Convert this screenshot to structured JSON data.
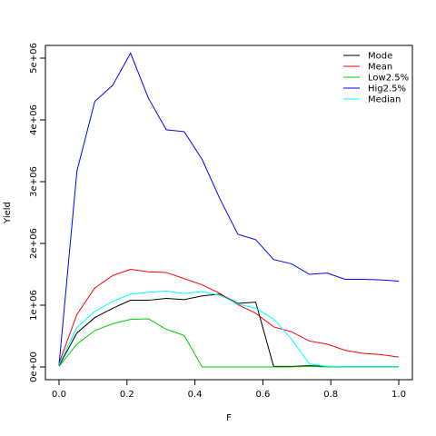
{
  "chart_data": {
    "type": "line",
    "title": "",
    "xlabel": "F",
    "ylabel": "Yield",
    "xlim": [
      0,
      1
    ],
    "ylim": [
      0,
      5000000
    ],
    "x_ticks": [
      0.0,
      0.2,
      0.4,
      0.6,
      0.8,
      1.0
    ],
    "x_tick_labels": [
      "0.0",
      "0.2",
      "0.4",
      "0.6",
      "0.8",
      "1.0"
    ],
    "y_ticks": [
      0,
      1000000,
      2000000,
      3000000,
      4000000,
      5000000
    ],
    "y_tick_labels": [
      "0e+00",
      "1e+06",
      "2e+06",
      "3e+06",
      "4e+06",
      "5e+06"
    ],
    "grid": false,
    "legend_position": "top-right",
    "x": [
      0.0,
      0.0526,
      0.1053,
      0.1579,
      0.2105,
      0.2632,
      0.3158,
      0.3684,
      0.4211,
      0.4737,
      0.5263,
      0.5789,
      0.6316,
      0.6842,
      0.7368,
      0.7895,
      0.8421,
      0.8947,
      0.9474,
      1.0
    ],
    "series": [
      {
        "name": "Mode",
        "color": "#000000",
        "values": [
          20000,
          550000,
          800000,
          950000,
          1080000,
          1080000,
          1110000,
          1090000,
          1150000,
          1180000,
          1030000,
          1050000,
          10000,
          10000,
          20000,
          10000,
          5000,
          5000,
          5000,
          5000
        ]
      },
      {
        "name": "Mean",
        "color": "#ff0000",
        "values": [
          60000,
          850000,
          1280000,
          1480000,
          1580000,
          1540000,
          1530000,
          1430000,
          1330000,
          1190000,
          1010000,
          870000,
          650000,
          570000,
          420000,
          370000,
          270000,
          220000,
          200000,
          160000
        ]
      },
      {
        "name": "Low2.5%",
        "color": "#00cc00",
        "values": [
          10000,
          370000,
          590000,
          700000,
          770000,
          780000,
          610000,
          510000,
          0,
          0,
          0,
          0,
          0,
          0,
          10000,
          0,
          0,
          0,
          0,
          0
        ]
      },
      {
        "name": "Hig2.5%",
        "color": "#0000ff",
        "values": [
          30000,
          3170000,
          4300000,
          4560000,
          5080000,
          4350000,
          3840000,
          3810000,
          3360000,
          2720000,
          2150000,
          2060000,
          1740000,
          1670000,
          1500000,
          1520000,
          1420000,
          1420000,
          1410000,
          1390000
        ]
      },
      {
        "name": "Median",
        "color": "#00ffff",
        "values": [
          40000,
          640000,
          900000,
          1060000,
          1180000,
          1210000,
          1230000,
          1190000,
          1220000,
          1160000,
          1020000,
          950000,
          780000,
          450000,
          50000,
          10000,
          5000,
          5000,
          5000,
          5000
        ]
      }
    ]
  }
}
